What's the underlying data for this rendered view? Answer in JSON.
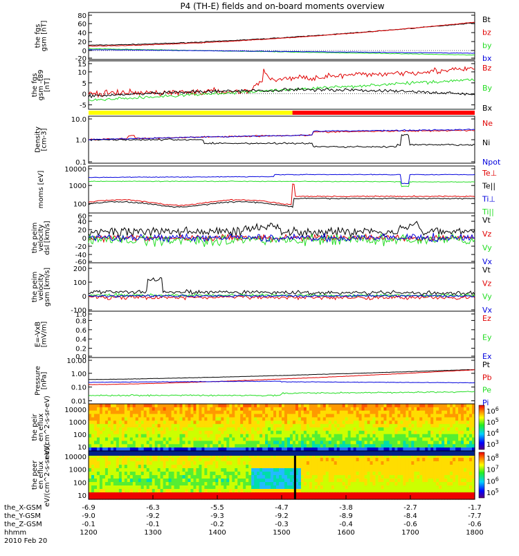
{
  "title": "P4 (TH-E) fields and on-board moments overview",
  "colors": {
    "black": "#000000",
    "red": "#e00000",
    "green": "#22dd22",
    "blue": "#0000dd",
    "yellow": "#ffff00",
    "redbar": "#ff0000"
  },
  "chart_data": [
    {
      "type": "line",
      "ylabel": "the fgs gsm [nT]",
      "ticks": [
        "80",
        "60",
        "40",
        "20",
        "0",
        "-20"
      ],
      "ylim": [
        -20,
        85
      ],
      "series": [
        {
          "name": "Bt",
          "color": "black",
          "shape": "rise",
          "params": [
            12,
            62
          ],
          "noise": 0.6
        },
        {
          "name": "bz",
          "color": "red",
          "shape": "rise",
          "params": [
            10,
            63
          ],
          "noise": 0.5
        },
        {
          "name": "by",
          "color": "green",
          "shape": "linear",
          "params": [
            4,
            -10
          ],
          "noise": 0.4
        },
        {
          "name": "bx",
          "color": "blue",
          "shape": "linear",
          "params": [
            2,
            -6
          ],
          "noise": 0.4
        }
      ]
    },
    {
      "type": "line",
      "ylabel": "the fgs gsm -t89 [nT]",
      "ticks": [
        "15",
        "10",
        "5",
        "0",
        "-5"
      ],
      "ylim": [
        -7,
        15
      ],
      "series": [
        {
          "name": "Bz",
          "color": "red",
          "shape": "bzdelta",
          "params": [
            0,
            14
          ],
          "noise": 1.0
        },
        {
          "name": "By",
          "color": "green",
          "shape": "linear",
          "params": [
            -3,
            6.5
          ],
          "noise": 0.5
        },
        {
          "name": "Bx",
          "color": "black",
          "shape": "bxdelta",
          "params": [
            -1,
            1.5
          ],
          "noise": 0.5
        }
      ]
    },
    {
      "type": "line",
      "ylabel": "Density [cm-3]",
      "ticks": [
        "10.0",
        "1.0",
        "0.1"
      ],
      "log": true,
      "ylim": [
        0.1,
        10
      ],
      "series": [
        {
          "name": "Ne",
          "color": "red",
          "shape": "ne",
          "params": [
            1.0,
            3.0
          ],
          "noise": 0.05
        },
        {
          "name": "Ni",
          "color": "black",
          "shape": "ni",
          "params": [
            1.0,
            0.7
          ],
          "noise": 0.06
        },
        {
          "name": "Npot",
          "color": "blue",
          "shape": "npot",
          "params": [
            1.0,
            3.0
          ],
          "noise": 0.04
        }
      ]
    },
    {
      "type": "line",
      "ylabel": "moms [eV]",
      "ticks": [
        "10000",
        "1000",
        "100"
      ],
      "log": true,
      "ylim": [
        30,
        12000
      ],
      "series": [
        {
          "name": "Te⊥",
          "color": "red",
          "shape": "te",
          "params": [
            120,
            250
          ],
          "noise": 0.05
        },
        {
          "name": "Te||",
          "color": "black",
          "shape": "te2",
          "params": [
            100,
            200
          ],
          "noise": 0.05
        },
        {
          "name": "Ti⊥",
          "color": "blue",
          "shape": "ti",
          "params": [
            3000,
            4000
          ],
          "noise": 0.03
        },
        {
          "name": "Ti||",
          "color": "green",
          "shape": "ti2",
          "params": [
            1800,
            1800
          ],
          "noise": 0.03
        }
      ]
    },
    {
      "type": "line",
      "ylabel": "the peim velocity dsl [km/s]",
      "ticks": [
        "60",
        "40",
        "20",
        "0",
        "-20",
        "-40",
        "-60"
      ],
      "ylim": [
        -60,
        60
      ],
      "series": [
        {
          "name": "Vt",
          "color": "black",
          "shape": "vt",
          "params": [
            15,
            12
          ],
          "noise": 8
        },
        {
          "name": "Vz",
          "color": "red",
          "shape": "flat",
          "params": [
            0,
            0
          ],
          "noise": 5
        },
        {
          "name": "Vy",
          "color": "green",
          "shape": "flat",
          "params": [
            -5,
            -5
          ],
          "noise": 9
        },
        {
          "name": "Vx",
          "color": "blue",
          "shape": "flat",
          "params": [
            0,
            0
          ],
          "noise": 6
        }
      ]
    },
    {
      "type": "line",
      "ylabel": "the peim velocity gsm [km/s]",
      "ticks": [
        "200",
        "100",
        "0",
        "-100"
      ],
      "ylim": [
        -110,
        240
      ],
      "series": [
        {
          "name": "Vt",
          "color": "black",
          "shape": "vt2",
          "params": [
            30,
            20
          ],
          "noise": 10
        },
        {
          "name": "Vz",
          "color": "red",
          "shape": "flat",
          "params": [
            -10,
            0
          ],
          "noise": 10
        },
        {
          "name": "Vy",
          "color": "green",
          "shape": "flat",
          "params": [
            5,
            5
          ],
          "noise": 8
        },
        {
          "name": "Vx",
          "color": "blue",
          "shape": "flat",
          "params": [
            0,
            0
          ],
          "noise": 6
        }
      ]
    },
    {
      "type": "line",
      "ylabel": "E=-VxB [mV/m]",
      "ticks": [
        "1.0",
        "0.8",
        "0.6",
        "0.4",
        "0.2",
        "0.0"
      ],
      "ylim": [
        0,
        1
      ],
      "series": [
        {
          "name": "Ez",
          "color": "red",
          "shape": "none",
          "params": [
            0,
            0
          ],
          "noise": 0
        },
        {
          "name": "Ey",
          "color": "green",
          "shape": "none",
          "params": [
            0,
            0
          ],
          "noise": 0
        },
        {
          "name": "Ex",
          "color": "blue",
          "shape": "none",
          "params": [
            0,
            0
          ],
          "noise": 0
        }
      ]
    },
    {
      "type": "line",
      "ylabel": "Pressure [nPa]",
      "ticks": [
        "10.00",
        "1.00",
        "0.10",
        "0.01"
      ],
      "log": true,
      "ylim": [
        0.006,
        14
      ],
      "series": [
        {
          "name": "Pt",
          "color": "black",
          "shape": "pt",
          "params": [
            0.35,
            1.9
          ],
          "noise": 0.02
        },
        {
          "name": "Pb",
          "color": "red",
          "shape": "pb",
          "params": [
            0.15,
            1.8
          ],
          "noise": 0.02
        },
        {
          "name": "Pe",
          "color": "green",
          "shape": "pe",
          "params": [
            0.02,
            0.03
          ],
          "noise": 0.08
        },
        {
          "name": "Pi",
          "color": "blue",
          "shape": "pi",
          "params": [
            0.2,
            0.2
          ],
          "noise": 0.03
        }
      ]
    },
    {
      "type": "heatmap",
      "ylabel": "the peir en eflux eV/(cm^2-s-sr-eV)",
      "ticks": [
        "10000",
        "1000",
        "100",
        "10"
      ],
      "colorbar_ticks": [
        "10^6",
        "10^5",
        "10^4",
        "10^3"
      ]
    },
    {
      "type": "heatmap",
      "ylabel": "the peer en eflux eV/(cm^2-s-sr-eV)",
      "ticks": [
        "10000",
        "1000",
        "100",
        "10"
      ],
      "colorbar_ticks": [
        "10^8",
        "10^7",
        "10^6",
        "10^5"
      ]
    }
  ],
  "flag_bar": {
    "split_time": "15:20"
  },
  "xaxis": {
    "rows": [
      {
        "label": "the_X-GSM",
        "values": [
          "-6.9",
          "-6.3",
          "-5.5",
          "-4.7",
          "-3.8",
          "-2.7",
          "-1.7"
        ]
      },
      {
        "label": "the_Y-GSM",
        "values": [
          "-9.0",
          "-9.2",
          "-9.3",
          "-9.2",
          "-8.9",
          "-8.4",
          "-7.7"
        ]
      },
      {
        "label": "the_Z-GSM",
        "values": [
          "-0.1",
          "-0.1",
          "-0.2",
          "-0.3",
          "-0.4",
          "-0.6",
          "-0.6"
        ]
      },
      {
        "label": "hhmm",
        "values": [
          "1200",
          "1300",
          "1400",
          "1500",
          "1600",
          "1700",
          "1800"
        ]
      }
    ],
    "date": "2010 Feb 20"
  }
}
